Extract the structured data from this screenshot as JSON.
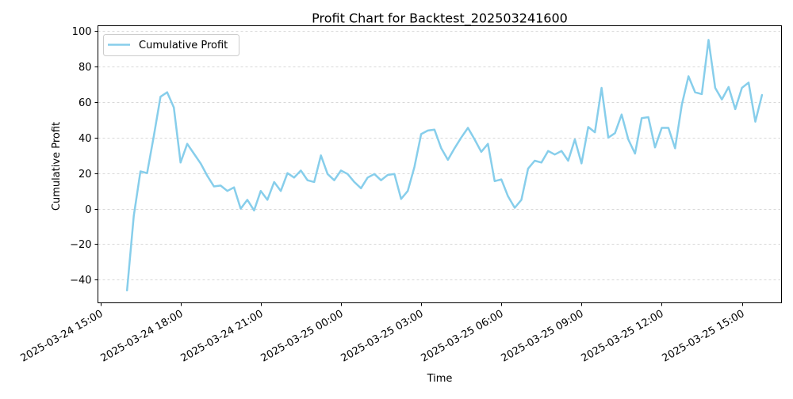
{
  "chart_data": {
    "type": "line",
    "title": "Profit Chart for Backtest_202503241600",
    "xlabel": "Time",
    "ylabel": "Cumulative Profit",
    "ylim": [
      -53,
      103
    ],
    "yticks": [
      -40,
      -20,
      0,
      20,
      40,
      60,
      80,
      100
    ],
    "grid": "y-dashed",
    "legend_position": "upper-left",
    "x_tick_labels": [
      "2025-03-24 15:00",
      "2025-03-24 18:00",
      "2025-03-24 21:00",
      "2025-03-25 00:00",
      "2025-03-25 03:00",
      "2025-03-25 06:00",
      "2025-03-25 09:00",
      "2025-03-25 12:00",
      "2025-03-25 15:00"
    ],
    "x_tick_hours": [
      0,
      3,
      6,
      9,
      12,
      15,
      18,
      21,
      24
    ],
    "x_range_hours": [
      -0.09,
      25.48
    ],
    "series": [
      {
        "name": "Cumulative Profit",
        "color": "#87CEEB",
        "x_hours": [
          1.0,
          1.25,
          1.5,
          1.75,
          2.0,
          2.25,
          2.5,
          2.75,
          3.0,
          3.25,
          3.5,
          3.75,
          4.0,
          4.25,
          4.5,
          4.75,
          5.0,
          5.25,
          5.5,
          5.75,
          6.0,
          6.25,
          6.5,
          6.75,
          7.0,
          7.25,
          7.5,
          7.75,
          8.0,
          8.25,
          8.5,
          8.75,
          9.0,
          9.25,
          9.5,
          9.75,
          10.0,
          10.25,
          10.5,
          10.75,
          11.0,
          11.25,
          11.5,
          11.75,
          12.0,
          12.25,
          12.5,
          12.75,
          13.0,
          13.25,
          13.5,
          13.75,
          14.0,
          14.25,
          14.5,
          14.75,
          15.0,
          15.25,
          15.5,
          15.75,
          16.0,
          16.25,
          16.5,
          16.75,
          17.0,
          17.25,
          17.5,
          17.75,
          18.0,
          18.25,
          18.5,
          18.75,
          19.0,
          19.25,
          19.5,
          19.75,
          20.0,
          20.25,
          20.5,
          20.75,
          21.0,
          21.25,
          21.5,
          21.75,
          22.0,
          22.25,
          22.5,
          22.75,
          23.0,
          23.25,
          23.5,
          23.75,
          24.0,
          24.25,
          24.5,
          24.75
        ],
        "values": [
          -46,
          -4,
          21,
          20,
          41,
          63,
          65.5,
          57,
          26,
          36.5,
          31,
          25.5,
          18.5,
          12.5,
          13,
          10,
          12,
          0,
          5,
          -1,
          10,
          5,
          15,
          10,
          20,
          17.5,
          21.5,
          16,
          15,
          30,
          19.5,
          16,
          21.5,
          19.5,
          15,
          11.5,
          17.5,
          19.5,
          16,
          19,
          19.5,
          5.5,
          10,
          23.5,
          42,
          44,
          44.5,
          34,
          27.5,
          34,
          40,
          45.5,
          39,
          32,
          36.5,
          15.5,
          16.5,
          7,
          0.5,
          5,
          22.5,
          27,
          26,
          32.5,
          30.5,
          32.5,
          27,
          39,
          25.5,
          46,
          43,
          68,
          40,
          42.5,
          53,
          39,
          31,
          51,
          51.5,
          34.5,
          45.5,
          45.5,
          34,
          58.5,
          74.5,
          65.5,
          64.5,
          95,
          68,
          61.5,
          68.5,
          56,
          68,
          71,
          49,
          64
        ]
      }
    ]
  }
}
